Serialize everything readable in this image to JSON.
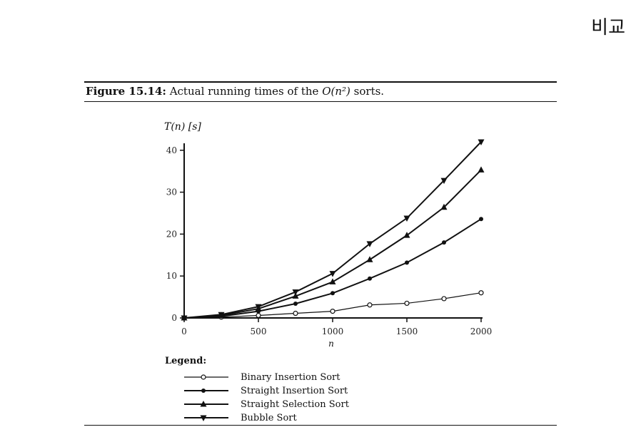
{
  "corner_label": "비교",
  "caption": {
    "figure_label": "Figure 15.14:",
    "text_before": "Actual running times of the",
    "math": "O(n²)",
    "text_after": "sorts."
  },
  "chart_data": {
    "type": "line",
    "title": "",
    "xlabel": "n",
    "ylabel": "T(n) [s]",
    "xlim": [
      0,
      2000
    ],
    "ylim": [
      0,
      42
    ],
    "xticks": [
      0,
      500,
      1000,
      1500,
      2000
    ],
    "yticks": [
      0,
      10,
      20,
      30,
      40
    ],
    "grid": false,
    "legend_title": "Legend:",
    "legend_position": "bottom",
    "x": [
      0,
      250,
      500,
      750,
      1000,
      1250,
      1500,
      1750,
      2000
    ],
    "series": [
      {
        "name": "Binary Insertion Sort",
        "marker": "circle-open",
        "values": [
          0,
          0.2,
          0.6,
          1.1,
          1.6,
          3.1,
          3.5,
          4.6,
          6.0
        ]
      },
      {
        "name": "Straight Insertion Sort",
        "marker": "circle-filled",
        "values": [
          0,
          0.4,
          1.6,
          3.4,
          5.9,
          9.4,
          13.2,
          18.0,
          23.6
        ]
      },
      {
        "name": "Straight Selection Sort",
        "marker": "triangle-up",
        "values": [
          0,
          0.6,
          2.2,
          5.2,
          8.6,
          13.9,
          19.7,
          26.4,
          35.3
        ]
      },
      {
        "name": "Bubble Sort",
        "marker": "triangle-down",
        "values": [
          0,
          0.8,
          2.7,
          6.2,
          10.6,
          17.7,
          23.8,
          32.8,
          42.0
        ]
      }
    ]
  }
}
